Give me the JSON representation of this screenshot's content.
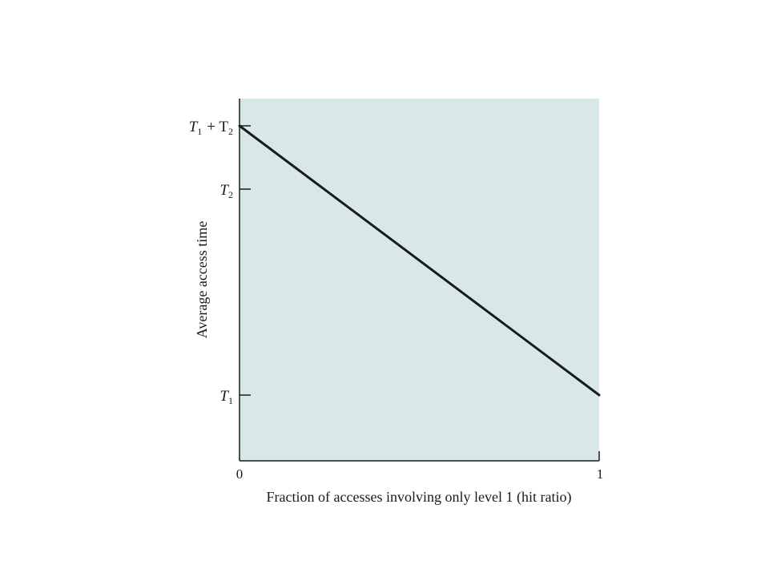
{
  "chart_data": {
    "type": "line",
    "title": "",
    "xlabel": "Fraction of accesses involving only level 1 (hit ratio)",
    "ylabel": "Average access time",
    "xlim": [
      0,
      1
    ],
    "x_ticks": [
      {
        "value": 0,
        "label": "0"
      },
      {
        "value": 1,
        "label": "1"
      }
    ],
    "y_ticks": [
      {
        "symbol": "T",
        "sub": "1",
        "tail": "+ T",
        "tail_sub": "2",
        "value": "T1 + T2"
      },
      {
        "symbol": "T",
        "sub": "2",
        "tail": "",
        "tail_sub": "",
        "value": "T2"
      },
      {
        "symbol": "T",
        "sub": "1",
        "tail": "",
        "tail_sub": "",
        "value": "T1"
      }
    ],
    "series": [
      {
        "x": [
          0,
          1
        ],
        "y": [
          "T1 + T2",
          "T1"
        ]
      }
    ],
    "plot_background": "#d8e8e8",
    "line_color": "#1a1a1a",
    "grid": false
  }
}
